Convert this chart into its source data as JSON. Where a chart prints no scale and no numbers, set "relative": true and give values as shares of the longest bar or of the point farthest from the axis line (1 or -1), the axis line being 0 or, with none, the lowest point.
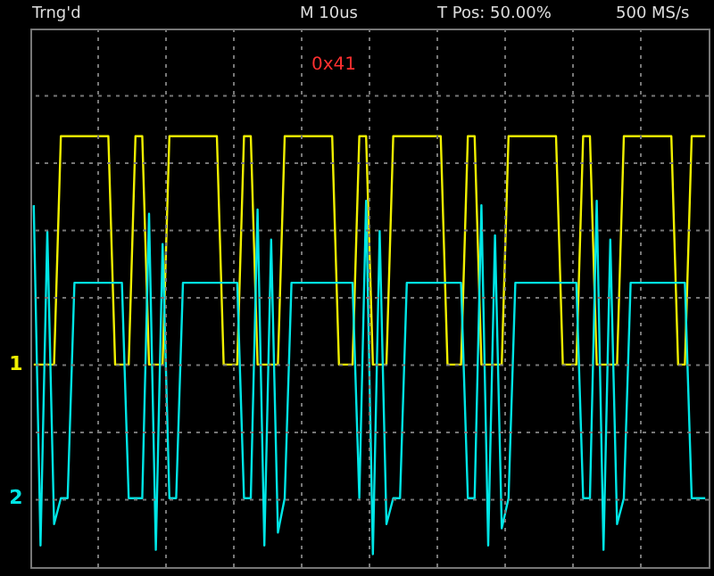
{
  "chart_data": {
    "type": "line",
    "relative": true,
    "grid": true,
    "line_style": "solid",
    "marker": "none",
    "annotations": [
      "Trng'd",
      "M 10us",
      "T Pos: 50.00%",
      "500 MS/s",
      "0x41"
    ],
    "categories": [
      null,
      null,
      null,
      null,
      null,
      null,
      null,
      null,
      null,
      null,
      null,
      null,
      null,
      null,
      null,
      null,
      null,
      null,
      null,
      null,
      null,
      null,
      null,
      null,
      null,
      null,
      null,
      null,
      null,
      null,
      null,
      null,
      null,
      null,
      null,
      null,
      null,
      null,
      null,
      null,
      null,
      null,
      null,
      null,
      null,
      null,
      null,
      null,
      null,
      null,
      null,
      null,
      null,
      null,
      null,
      null,
      null,
      null,
      null,
      null,
      null,
      null,
      null,
      null,
      null,
      null,
      null,
      null,
      null,
      null,
      null,
      null,
      null,
      null,
      null,
      null,
      null,
      null,
      null,
      null,
      null,
      null,
      null,
      null,
      null,
      null,
      null,
      null,
      null,
      null,
      null,
      null,
      null,
      null,
      null,
      null,
      null,
      null,
      null,
      null
    ],
    "series": [
      {
        "name": "1",
        "color": "#f0f000",
        "values": [
          0.47,
          0.47,
          0.47,
          0.47,
          1,
          1,
          1,
          1,
          1,
          1,
          1,
          1,
          0.47,
          0.47,
          0.47,
          1,
          1,
          0.47,
          0.47,
          0.47,
          1,
          1,
          1,
          1,
          1,
          1,
          1,
          1,
          0.47,
          0.47,
          0.47,
          1,
          1,
          0.47,
          0.47,
          0.47,
          0.47,
          1,
          1,
          1,
          1,
          1,
          1,
          1,
          1,
          0.47,
          0.47,
          0.47,
          1,
          1,
          0.47,
          0.47,
          0.47,
          1,
          1,
          1,
          1,
          1,
          1,
          1,
          1,
          0.47,
          0.47,
          0.47,
          1,
          1,
          0.47,
          0.47,
          0.47,
          0.47,
          1,
          1,
          1,
          1,
          1,
          1,
          1,
          1,
          0.47,
          0.47,
          0.47,
          1,
          1,
          0.47,
          0.47,
          0.47,
          0.47,
          1,
          1,
          1,
          1,
          1,
          1,
          1,
          1,
          0.47,
          0.47,
          1,
          1,
          1
        ]
      },
      {
        "name": "2",
        "color": "#00e5e5",
        "values": [
          0.84,
          0.05,
          0.78,
          0.1,
          0.16,
          0.16,
          0.66,
          0.66,
          0.66,
          0.66,
          0.66,
          0.66,
          0.66,
          0.66,
          0.16,
          0.16,
          0.16,
          0.82,
          0.04,
          0.75,
          0.16,
          0.16,
          0.66,
          0.66,
          0.66,
          0.66,
          0.66,
          0.66,
          0.66,
          0.66,
          0.66,
          0.16,
          0.16,
          0.83,
          0.05,
          0.76,
          0.08,
          0.16,
          0.66,
          0.66,
          0.66,
          0.66,
          0.66,
          0.66,
          0.66,
          0.66,
          0.66,
          0.66,
          0.16,
          0.85,
          0.03,
          0.78,
          0.1,
          0.16,
          0.16,
          0.66,
          0.66,
          0.66,
          0.66,
          0.66,
          0.66,
          0.66,
          0.66,
          0.66,
          0.16,
          0.16,
          0.84,
          0.05,
          0.77,
          0.09,
          0.16,
          0.66,
          0.66,
          0.66,
          0.66,
          0.66,
          0.66,
          0.66,
          0.66,
          0.66,
          0.66,
          0.16,
          0.16,
          0.85,
          0.04,
          0.76,
          0.1,
          0.16,
          0.66,
          0.66,
          0.66,
          0.66,
          0.66,
          0.66,
          0.66,
          0.66,
          0.66,
          0.16,
          0.16,
          0.16
        ]
      }
    ]
  }
}
